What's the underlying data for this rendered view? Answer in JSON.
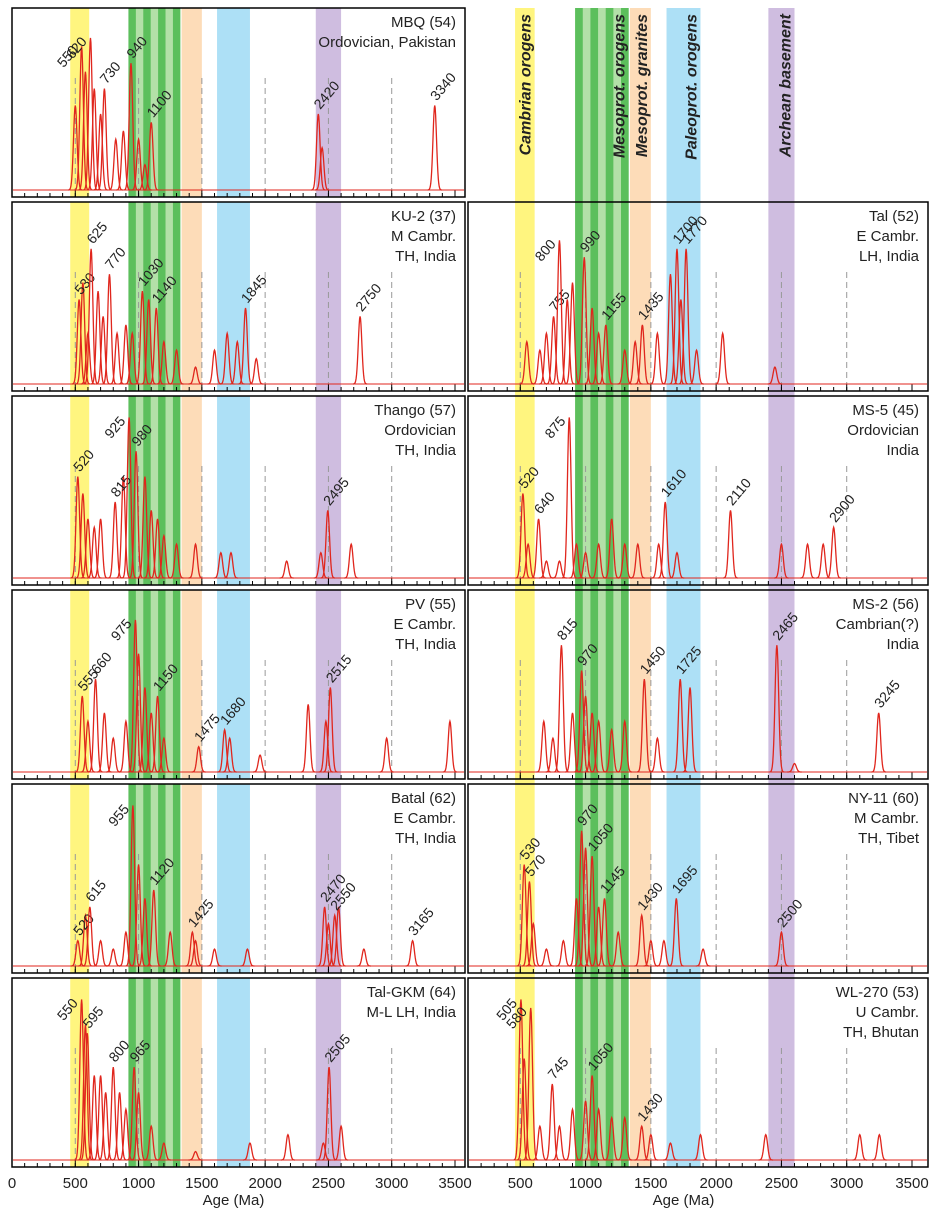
{
  "axis": {
    "xlim": [
      0,
      3500
    ],
    "xticks": [
      0,
      500,
      1000,
      1500,
      2000,
      2500,
      3000,
      3500
    ],
    "ylim": [
      0,
      1
    ],
    "xlabel": "Age (Ma)",
    "grid": true
  },
  "bands": [
    {
      "name": "Cambrian orogens",
      "color": "#fff57f",
      "range": [
        460,
        610
      ]
    },
    {
      "name": "Mesoprot. orogens",
      "color": "#5cbf5c",
      "stripe_color": "#b3e0a8",
      "range": [
        920,
        1330
      ]
    },
    {
      "name": "Mesoprot. granites",
      "color": "#fddcb8",
      "range": [
        1340,
        1500
      ]
    },
    {
      "name": "Paleoprot. orogens",
      "color": "#ade0f6",
      "range": [
        1620,
        1880
      ]
    },
    {
      "name": "Archean basement",
      "color": "#cfbde0",
      "range": [
        2400,
        2600
      ]
    }
  ],
  "chart_data": [
    {
      "type": "density",
      "color": "#e0261d",
      "title": [
        "MBQ (54)",
        "Ordovician, Pakistan"
      ],
      "labeled_peaks": {
        "x": [
          550,
          620,
          730,
          940,
          1100,
          2420,
          3340
        ],
        "values": [
          0.85,
          0.9,
          0.6,
          0.75,
          0.4,
          0.45,
          0.5
        ]
      },
      "other_peaks": {
        "x": [
          500,
          580,
          650,
          700,
          820,
          880,
          1000,
          1050,
          2450
        ],
        "values": [
          0.5,
          0.7,
          0.6,
          0.45,
          0.3,
          0.35,
          0.3,
          0.15,
          0.25
        ]
      }
    },
    {
      "type": "density",
      "color": "#e0261d",
      "title": [
        "KU-2 (37)",
        "M Cambr.",
        "TH, India"
      ],
      "labeled_peaks": {
        "x": [
          530,
          625,
          770,
          1030,
          1140,
          1845,
          2750
        ],
        "values": [
          0.5,
          0.8,
          0.65,
          0.55,
          0.45,
          0.45,
          0.4
        ]
      },
      "other_peaks": {
        "x": [
          560,
          600,
          680,
          720,
          830,
          900,
          950,
          1080,
          1200,
          1300,
          1450,
          1600,
          1700,
          1780,
          1930
        ],
        "values": [
          0.6,
          0.3,
          0.55,
          0.4,
          0.3,
          0.35,
          0.3,
          0.5,
          0.25,
          0.2,
          0.1,
          0.2,
          0.3,
          0.25,
          0.15
        ]
      }
    },
    {
      "type": "density",
      "color": "#e0261d",
      "title": [
        "Thango (57)",
        "Ordovician",
        "TH, India"
      ],
      "labeled_peaks": {
        "x": [
          520,
          815,
          925,
          980,
          2495
        ],
        "values": [
          0.6,
          0.45,
          0.95,
          0.75,
          0.4
        ]
      },
      "other_peaks": {
        "x": [
          560,
          600,
          650,
          700,
          880,
          1050,
          1100,
          1150,
          1200,
          1300,
          1450,
          1650,
          1730,
          2170,
          2440,
          2680
        ],
        "values": [
          0.5,
          0.35,
          0.3,
          0.35,
          0.6,
          0.6,
          0.4,
          0.35,
          0.25,
          0.2,
          0.2,
          0.15,
          0.15,
          0.1,
          0.15,
          0.2
        ]
      }
    },
    {
      "type": "density",
      "color": "#e0261d",
      "title": [
        "PV (55)",
        "E Cambr.",
        "TH, India"
      ],
      "labeled_peaks": {
        "x": [
          555,
          660,
          975,
          1150,
          1475,
          1680,
          2515
        ],
        "values": [
          0.45,
          0.55,
          0.9,
          0.45,
          0.15,
          0.25,
          0.5
        ]
      },
      "other_peaks": {
        "x": [
          600,
          730,
          800,
          900,
          1000,
          1050,
          1100,
          1200,
          1720,
          1960,
          2340,
          2480,
          2960,
          3460
        ],
        "values": [
          0.3,
          0.35,
          0.2,
          0.3,
          0.7,
          0.5,
          0.35,
          0.2,
          0.2,
          0.1,
          0.4,
          0.3,
          0.2,
          0.3
        ]
      }
    },
    {
      "type": "density",
      "color": "#e0261d",
      "title": [
        "Batal (62)",
        "E Cambr.",
        "TH, India"
      ],
      "labeled_peaks": {
        "x": [
          520,
          615,
          955,
          1120,
          1425,
          2470,
          2550,
          3165
        ],
        "values": [
          0.15,
          0.35,
          0.95,
          0.45,
          0.2,
          0.35,
          0.3,
          0.15
        ]
      },
      "other_peaks": {
        "x": [
          580,
          700,
          800,
          900,
          1000,
          1050,
          1250,
          1450,
          1600,
          1860,
          2500,
          2580,
          2780
        ],
        "values": [
          0.3,
          0.15,
          0.1,
          0.2,
          0.6,
          0.4,
          0.2,
          0.15,
          0.1,
          0.1,
          0.25,
          0.35,
          0.1
        ]
      }
    },
    {
      "type": "density",
      "color": "#e0261d",
      "title": [
        "Tal-GKM (64)",
        "M-L LH, India"
      ],
      "labeled_peaks": {
        "x": [
          550,
          595,
          800,
          965,
          2505
        ],
        "values": [
          0.95,
          0.75,
          0.55,
          0.55,
          0.55
        ]
      },
      "other_peaks": {
        "x": [
          580,
          650,
          700,
          740,
          850,
          900,
          1000,
          1100,
          1200,
          1450,
          1880,
          2180,
          2460,
          2600
        ],
        "values": [
          0.8,
          0.5,
          0.5,
          0.4,
          0.4,
          0.3,
          0.4,
          0.2,
          0.1,
          0.05,
          0.1,
          0.15,
          0.1,
          0.2
        ]
      }
    },
    {
      "type": "density",
      "color": "#e0261d",
      "title": [
        "Tal (52)",
        "E Cambr.",
        "LH, India"
      ],
      "labeled_peaks": {
        "x": [
          755,
          800,
          990,
          1155,
          1435,
          1700,
          1770
        ],
        "values": [
          0.4,
          0.85,
          0.75,
          0.35,
          0.35,
          0.8,
          0.8
        ]
      },
      "other_peaks": {
        "x": [
          550,
          650,
          700,
          860,
          900,
          1050,
          1100,
          1300,
          1380,
          1550,
          1650,
          1730,
          1850,
          2050,
          2450
        ],
        "values": [
          0.25,
          0.2,
          0.3,
          0.5,
          0.6,
          0.45,
          0.3,
          0.2,
          0.25,
          0.3,
          0.65,
          0.5,
          0.2,
          0.3,
          0.1
        ]
      }
    },
    {
      "type": "density",
      "color": "#e0261d",
      "title": [
        "MS-5 (45)",
        "Ordovician",
        "India"
      ],
      "labeled_peaks": {
        "x": [
          520,
          640,
          875,
          1610,
          2110,
          2900
        ],
        "values": [
          0.5,
          0.35,
          0.95,
          0.45,
          0.4,
          0.3
        ]
      },
      "other_peaks": {
        "x": [
          560,
          700,
          800,
          930,
          1000,
          1100,
          1200,
          1300,
          1400,
          1560,
          1700,
          2500,
          2700,
          2820
        ],
        "values": [
          0.2,
          0.1,
          0.1,
          0.2,
          0.15,
          0.2,
          0.35,
          0.2,
          0.2,
          0.2,
          0.15,
          0.2,
          0.2,
          0.2
        ]
      }
    },
    {
      "type": "density",
      "color": "#e0261d",
      "title": [
        "MS-2 (56)",
        "Cambrian(?)",
        "India"
      ],
      "labeled_peaks": {
        "x": [
          815,
          970,
          1450,
          1725,
          2465,
          3245
        ],
        "values": [
          0.75,
          0.6,
          0.55,
          0.55,
          0.75,
          0.35
        ]
      },
      "other_peaks": {
        "x": [
          680,
          750,
          900,
          1000,
          1050,
          1100,
          1200,
          1300,
          1550,
          1800,
          2600
        ],
        "values": [
          0.3,
          0.2,
          0.35,
          0.45,
          0.35,
          0.3,
          0.25,
          0.3,
          0.2,
          0.5,
          0.05
        ]
      }
    },
    {
      "type": "density",
      "color": "#e0261d",
      "title": [
        "NY-11 (60)",
        "M Cambr.",
        "TH, Tibet"
      ],
      "labeled_peaks": {
        "x": [
          530,
          570,
          970,
          1050,
          1145,
          1430,
          1695,
          2500
        ],
        "values": [
          0.6,
          0.5,
          0.8,
          0.65,
          0.4,
          0.3,
          0.4,
          0.2
        ]
      },
      "other_peaks": {
        "x": [
          600,
          700,
          830,
          930,
          1000,
          1100,
          1250,
          1500,
          1600,
          1900
        ],
        "values": [
          0.25,
          0.1,
          0.15,
          0.4,
          0.7,
          0.35,
          0.2,
          0.15,
          0.15,
          0.1
        ]
      }
    },
    {
      "type": "density",
      "color": "#e0261d",
      "title": [
        "WL-270 (53)",
        "U Cambr.",
        "TH, Bhutan"
      ],
      "labeled_peaks": {
        "x": [
          505,
          580,
          745,
          1050,
          1430
        ],
        "values": [
          0.95,
          0.9,
          0.45,
          0.5,
          0.2
        ]
      },
      "other_peaks": {
        "x": [
          530,
          650,
          800,
          900,
          1000,
          1100,
          1200,
          1300,
          1500,
          1650,
          1880,
          2380,
          3100,
          3250
        ],
        "values": [
          0.6,
          0.2,
          0.2,
          0.3,
          0.35,
          0.3,
          0.25,
          0.25,
          0.15,
          0.1,
          0.15,
          0.15,
          0.15,
          0.15
        ]
      }
    }
  ]
}
